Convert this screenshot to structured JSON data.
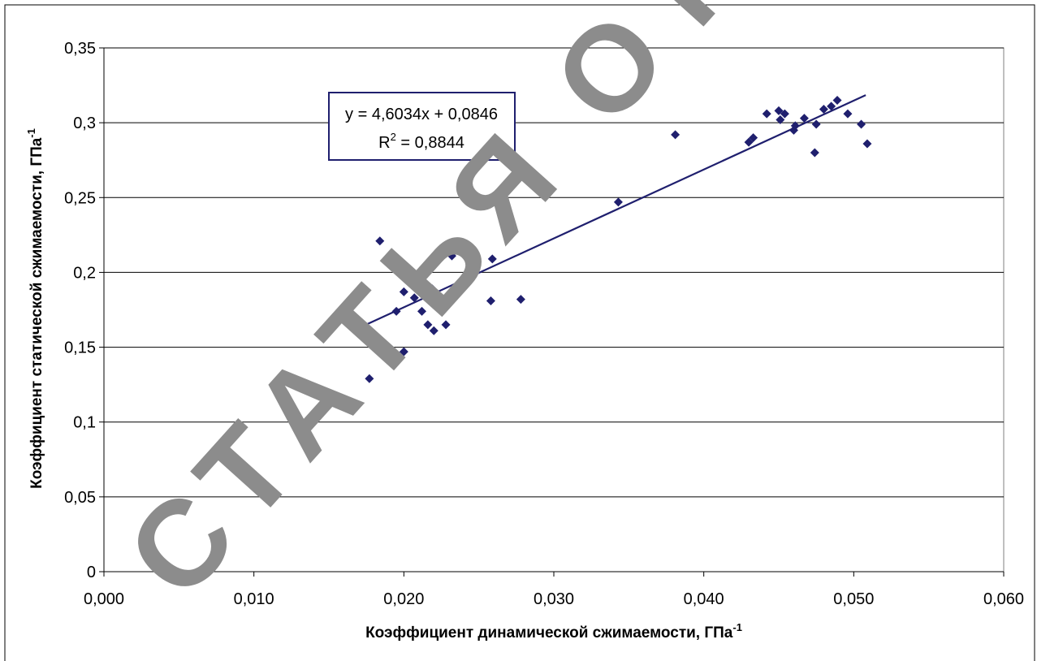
{
  "chart_data": {
    "type": "scatter",
    "title": "",
    "xlabel": "Коэффициент динамической сжимаемости, ГПа",
    "xlabel_sup": "-1",
    "ylabel": "Коэффициент статической сжимаемости, ГПа",
    "ylabel_sup": "-1",
    "xlim": [
      0,
      0.06
    ],
    "ylim": [
      0,
      0.35
    ],
    "x_ticks": [
      {
        "value": 0.0,
        "label": "0,000"
      },
      {
        "value": 0.01,
        "label": "0,010"
      },
      {
        "value": 0.02,
        "label": "0,020"
      },
      {
        "value": 0.03,
        "label": "0,030"
      },
      {
        "value": 0.04,
        "label": "0,040"
      },
      {
        "value": 0.05,
        "label": "0,050"
      },
      {
        "value": 0.06,
        "label": "0,060"
      }
    ],
    "y_ticks": [
      {
        "value": 0.0,
        "label": "0"
      },
      {
        "value": 0.05,
        "label": "0,05"
      },
      {
        "value": 0.1,
        "label": "0,1"
      },
      {
        "value": 0.15,
        "label": "0,15"
      },
      {
        "value": 0.2,
        "label": "0,2"
      },
      {
        "value": 0.25,
        "label": "0,25"
      },
      {
        "value": 0.3,
        "label": "0,3"
      },
      {
        "value": 0.35,
        "label": "0,35"
      }
    ],
    "grid": "horizontal",
    "legend": "none",
    "marker_color": "#1f1f6e",
    "points": [
      [
        0.0177,
        0.129
      ],
      [
        0.0184,
        0.221
      ],
      [
        0.0192,
        0.212
      ],
      [
        0.02,
        0.187
      ],
      [
        0.0195,
        0.174
      ],
      [
        0.02,
        0.147
      ],
      [
        0.0207,
        0.183
      ],
      [
        0.0212,
        0.174
      ],
      [
        0.0216,
        0.165
      ],
      [
        0.0219,
        0.189
      ],
      [
        0.022,
        0.161
      ],
      [
        0.0224,
        0.178
      ],
      [
        0.0228,
        0.165
      ],
      [
        0.0232,
        0.211
      ],
      [
        0.0258,
        0.181
      ],
      [
        0.0259,
        0.209
      ],
      [
        0.0278,
        0.182
      ],
      [
        0.0268,
        0.231
      ],
      [
        0.0343,
        0.247
      ],
      [
        0.0381,
        0.292
      ],
      [
        0.043,
        0.287
      ],
      [
        0.0433,
        0.29
      ],
      [
        0.0442,
        0.306
      ],
      [
        0.045,
        0.308
      ],
      [
        0.0451,
        0.302
      ],
      [
        0.0454,
        0.306
      ],
      [
        0.046,
        0.295
      ],
      [
        0.0461,
        0.298
      ],
      [
        0.0467,
        0.303
      ],
      [
        0.0474,
        0.28
      ],
      [
        0.0475,
        0.299
      ],
      [
        0.048,
        0.309
      ],
      [
        0.0485,
        0.311
      ],
      [
        0.0489,
        0.315
      ],
      [
        0.0496,
        0.306
      ],
      [
        0.0505,
        0.299
      ],
      [
        0.0509,
        0.286
      ]
    ],
    "trendline": {
      "slope": 4.6034,
      "intercept": 0.0846,
      "x_range": [
        0.0175,
        0.0508
      ],
      "color": "#1f1f6e",
      "equation": "y = 4,6034x + 0,0846",
      "r2_prefix": "R",
      "r2_sup": "2",
      "r2_value": " = 0,8844"
    }
  },
  "watermark": {
    "text": "СТАТЬЯ ОТОЗВАНА",
    "color": "#8c8c8c"
  }
}
